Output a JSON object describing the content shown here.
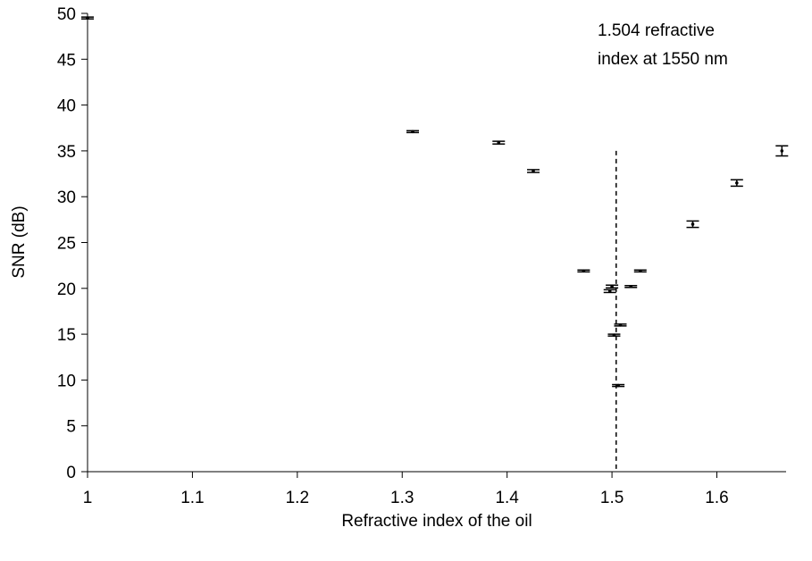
{
  "chart_data": {
    "type": "scatter",
    "title": "",
    "xlabel": "Refractive index of the oil",
    "ylabel": "SNR (dB)",
    "xlim": [
      1.0,
      1.666
    ],
    "ylim": [
      0,
      50
    ],
    "x_ticks": [
      1.0,
      1.1,
      1.2,
      1.3,
      1.4,
      1.5,
      1.6
    ],
    "x_tick_labels": [
      "1",
      "1.1",
      "1.2",
      "1.3",
      "1.4",
      "1.5",
      "1.6"
    ],
    "y_ticks": [
      0,
      5,
      10,
      15,
      20,
      25,
      30,
      35,
      40,
      45,
      50
    ],
    "y_tick_labels": [
      "0",
      "5",
      "10",
      "15",
      "20",
      "25",
      "30",
      "35",
      "40",
      "45",
      "50"
    ],
    "grid": false,
    "legend": "none",
    "marker_color": "#000000",
    "series": [
      {
        "points": [
          {
            "x": 1.0,
            "y": 49.5,
            "err": 0.1
          },
          {
            "x": 1.31,
            "y": 37.1,
            "err": 0.1
          },
          {
            "x": 1.392,
            "y": 35.9,
            "err": 0.15
          },
          {
            "x": 1.425,
            "y": 32.8,
            "err": 0.15
          },
          {
            "x": 1.473,
            "y": 21.9,
            "err": 0.1
          },
          {
            "x": 1.498,
            "y": 19.7,
            "err": 0.15
          },
          {
            "x": 1.5,
            "y": 20.2,
            "err": 0.15
          },
          {
            "x": 1.502,
            "y": 14.9,
            "err": 0.1
          },
          {
            "x": 1.506,
            "y": 9.4,
            "err": 0.1
          },
          {
            "x": 1.508,
            "y": 16.0,
            "err": 0.1
          },
          {
            "x": 1.518,
            "y": 20.2,
            "err": 0.1
          },
          {
            "x": 1.527,
            "y": 21.9,
            "err": 0.1
          },
          {
            "x": 1.577,
            "y": 27.0,
            "err": 0.35
          },
          {
            "x": 1.619,
            "y": 31.5,
            "err": 0.35
          },
          {
            "x": 1.662,
            "y": 35.0,
            "err": 0.55
          }
        ]
      }
    ],
    "reference_line": {
      "x": 1.504,
      "y_range": [
        0,
        35
      ],
      "style": "dashed"
    },
    "annotation": {
      "lines": [
        "1.504 refractive",
        "index at 1550 nm"
      ],
      "position": "top-right"
    }
  }
}
